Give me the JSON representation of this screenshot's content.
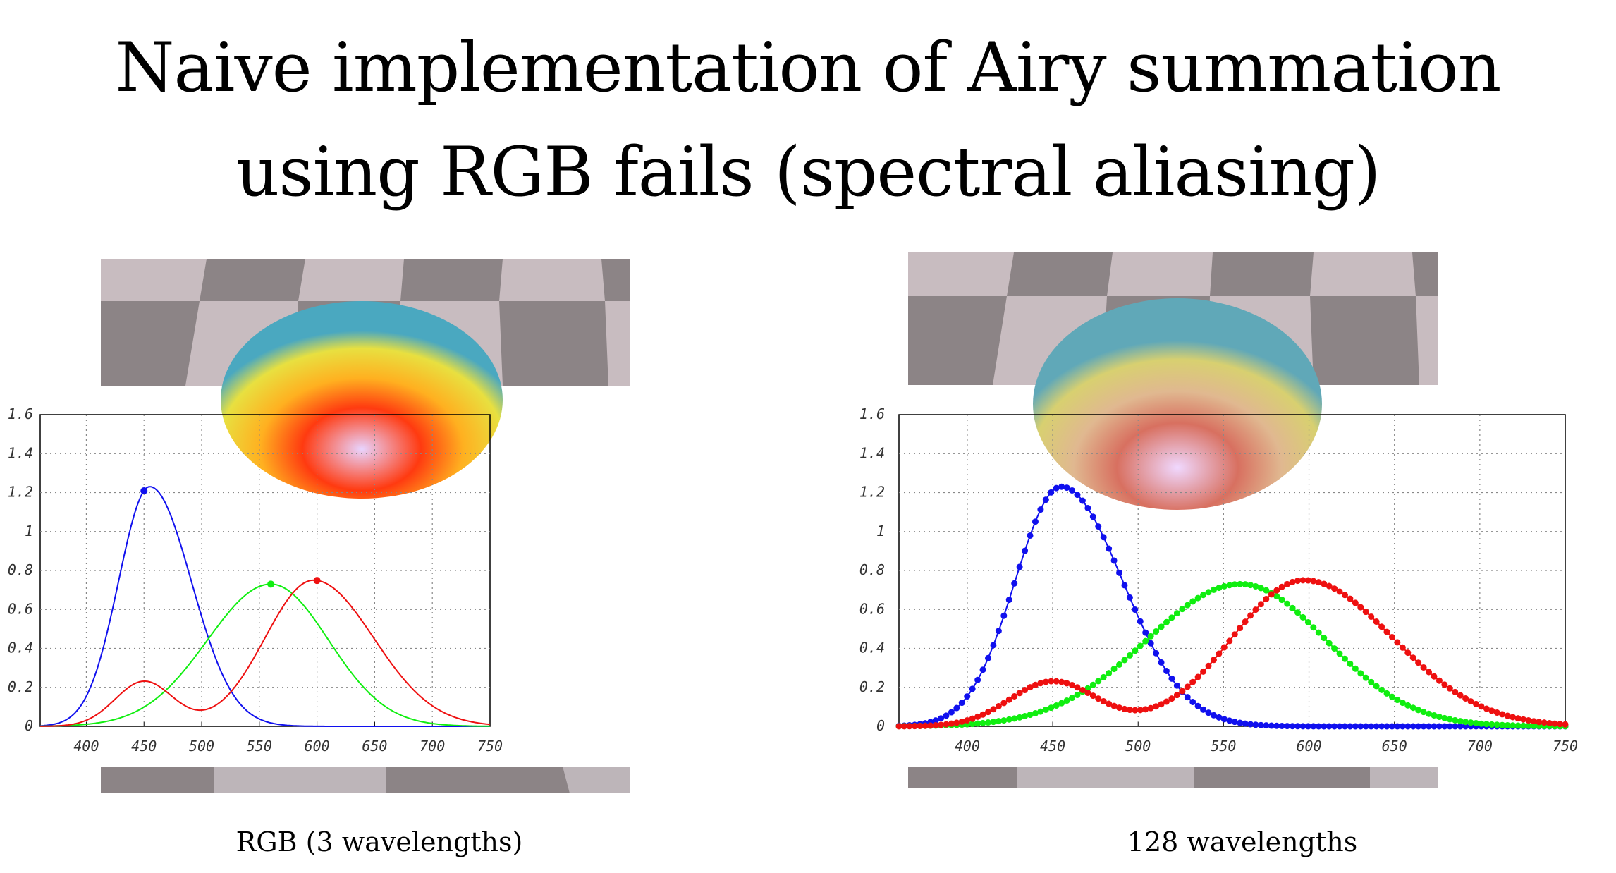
{
  "title": {
    "line1": "Naive implementation of Airy summation",
    "line2": "using RGB fails (spectral aliasing)"
  },
  "colors": {
    "blue": "#1010ee",
    "green": "#10ee10",
    "red": "#ee1010",
    "checker_light": "#c4b8bc",
    "checker_dark": "#8c8486"
  },
  "panels": [
    {
      "caption": "RGB (3 wavelengths)",
      "sample_count": 3
    },
    {
      "caption": "128 wavelengths",
      "sample_count": 128
    }
  ],
  "chart_data": [
    {
      "type": "line",
      "title": "",
      "xlabel": "",
      "ylabel": "",
      "xlim": [
        360,
        750
      ],
      "ylim": [
        0,
        1.6
      ],
      "x_ticks": [
        "400",
        "450",
        "500",
        "550",
        "600",
        "650",
        "700",
        "750"
      ],
      "y_ticks": [
        "0",
        "0.2",
        "0.4",
        "0.6",
        "0.8",
        "1",
        "1.2",
        "1.4",
        "1.6"
      ],
      "grid": true,
      "markers": "sample points at 450, 560, 600 only",
      "series": [
        {
          "color": "blue",
          "peak_x": 455,
          "peak_y": 1.23
        },
        {
          "color": "green",
          "peak_x": 560,
          "peak_y": 0.73
        },
        {
          "color": "red",
          "peaks": [
            [
              450,
              0.23
            ],
            [
              597,
              0.75
            ]
          ]
        }
      ]
    },
    {
      "type": "line",
      "title": "",
      "xlabel": "",
      "ylabel": "",
      "xlim": [
        360,
        750
      ],
      "ylim": [
        0,
        1.6
      ],
      "x_ticks": [
        "400",
        "450",
        "500",
        "550",
        "600",
        "650",
        "700",
        "750"
      ],
      "y_ticks": [
        "0",
        "0.2",
        "0.4",
        "0.6",
        "0.8",
        "1",
        "1.2",
        "1.4",
        "1.6"
      ],
      "grid": true,
      "markers": "128 sample points per curve",
      "series": [
        {
          "color": "blue",
          "peak_x": 455,
          "peak_y": 1.23
        },
        {
          "color": "green",
          "peak_x": 560,
          "peak_y": 0.73
        },
        {
          "color": "red",
          "peaks": [
            [
              450,
              0.23
            ],
            [
              597,
              0.75
            ]
          ]
        }
      ]
    }
  ]
}
